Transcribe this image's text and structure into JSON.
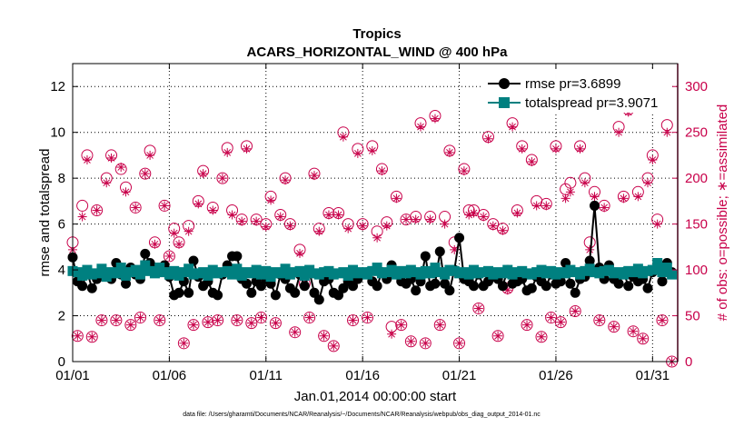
{
  "chart_data": {
    "type": "line",
    "title": "Tropics",
    "subtitle": "ACARS_HORIZONTAL_WIND @ 400 hPa",
    "xlabel": "Jan.01,2014 00:00:00 start",
    "ylabel": "rmse and totalspread",
    "ylabel_right": "# of obs: o=possible; ∗=assimilated",
    "xlim": [
      0,
      31.3
    ],
    "ylim": [
      0,
      13
    ],
    "ylim_right": [
      0,
      325
    ],
    "x_ticks": [
      0,
      5,
      10,
      15,
      20,
      25,
      30
    ],
    "x_tick_labels": [
      "01/01",
      "01/06",
      "01/11",
      "01/16",
      "01/21",
      "01/26",
      "01/31"
    ],
    "y_ticks": [
      0,
      2,
      4,
      6,
      8,
      10,
      12
    ],
    "y_tick_labels": [
      "0",
      "2",
      "4",
      "6",
      "8",
      "10",
      "12"
    ],
    "y_right_ticks": [
      0,
      50,
      100,
      150,
      200,
      250,
      300
    ],
    "y_right_tick_labels": [
      "0",
      "50",
      "100",
      "150",
      "200",
      "250",
      "300"
    ],
    "legend": [
      "rmse pr=3.6899",
      "totalspread pr=3.9071"
    ],
    "legend_position": "top-right",
    "footnote": "data file: /Users/gharamti/Documents/NCAR/Reanalysis/~/Documents/NCAR/Reanalysis/webpub/obs_diag_output_2014-01.nc",
    "x": [
      0.0,
      0.25,
      0.5,
      0.75,
      1.0,
      1.25,
      1.5,
      1.75,
      2.0,
      2.25,
      2.5,
      2.75,
      3.0,
      3.25,
      3.5,
      3.75,
      4.0,
      4.25,
      4.5,
      4.75,
      5.0,
      5.25,
      5.5,
      5.75,
      6.0,
      6.25,
      6.5,
      6.75,
      7.0,
      7.25,
      7.5,
      7.75,
      8.0,
      8.25,
      8.5,
      8.75,
      9.0,
      9.25,
      9.5,
      9.75,
      10.0,
      10.25,
      10.5,
      10.75,
      11.0,
      11.25,
      11.5,
      11.75,
      12.0,
      12.25,
      12.5,
      12.75,
      13.0,
      13.25,
      13.5,
      13.75,
      14.0,
      14.25,
      14.5,
      14.75,
      15.0,
      15.25,
      15.5,
      15.75,
      16.0,
      16.25,
      16.5,
      16.75,
      17.0,
      17.25,
      17.5,
      17.75,
      18.0,
      18.25,
      18.5,
      18.75,
      19.0,
      19.25,
      19.5,
      19.75,
      20.0,
      20.25,
      20.5,
      20.75,
      21.0,
      21.25,
      21.5,
      21.75,
      22.0,
      22.25,
      22.5,
      22.75,
      23.0,
      23.25,
      23.5,
      23.75,
      24.0,
      24.25,
      24.5,
      24.75,
      25.0,
      25.25,
      25.5,
      25.75,
      26.0,
      26.25,
      26.5,
      26.75,
      27.0,
      27.25,
      27.5,
      27.75,
      28.0,
      28.25,
      28.5,
      28.75,
      29.0,
      29.25,
      29.5,
      29.75,
      30.0,
      30.25,
      30.5,
      30.75,
      31.0
    ],
    "series": [
      {
        "name": "rmse",
        "axis": "left",
        "marker": "circle",
        "color": "#000000",
        "values": [
          4.55,
          3.5,
          3.3,
          3.9,
          3.2,
          3.6,
          4.0,
          3.7,
          3.6,
          4.3,
          3.8,
          3.4,
          4.1,
          3.8,
          3.6,
          4.7,
          4.3,
          4.0,
          3.9,
          4.2,
          3.7,
          2.9,
          3.0,
          3.5,
          3.0,
          4.4,
          3.7,
          3.3,
          3.5,
          3.0,
          2.9,
          3.8,
          4.2,
          4.6,
          4.6,
          3.6,
          3.4,
          3.0,
          3.5,
          3.3,
          3.6,
          3.4,
          2.9,
          3.8,
          3.6,
          3.2,
          3.0,
          3.8,
          3.3,
          3.9,
          3.0,
          2.7,
          3.5,
          3.6,
          3.0,
          2.9,
          3.2,
          3.5,
          3.3,
          3.6,
          3.8,
          3.9,
          3.5,
          3.3,
          3.9,
          3.6,
          4.2,
          3.8,
          3.5,
          3.4,
          3.6,
          3.1,
          3.5,
          4.6,
          3.3,
          3.4,
          4.8,
          3.4,
          3.1,
          4.0,
          5.4,
          3.6,
          3.5,
          3.3,
          3.8,
          3.3,
          3.5,
          3.7,
          3.6,
          3.3,
          4.0,
          3.4,
          3.5,
          3.6,
          3.1,
          3.2,
          3.7,
          3.5,
          3.3,
          3.8,
          3.4,
          3.5,
          4.3,
          3.4,
          3.0,
          3.6,
          3.7,
          4.4,
          6.8,
          4.1,
          3.6,
          4.2,
          3.6,
          3.4,
          3.9,
          3.3,
          3.7,
          3.5,
          3.6,
          3.2,
          3.9,
          4.1,
          3.5,
          4.3,
          3.9
        ],
        "label": "rmse pr=3.6899"
      },
      {
        "name": "totalspread",
        "axis": "left",
        "marker": "square",
        "color": "#008080",
        "values": [
          3.95,
          3.9,
          3.75,
          4.0,
          3.8,
          3.85,
          4.05,
          3.7,
          3.9,
          3.85,
          4.1,
          3.75,
          3.9,
          4.0,
          3.8,
          4.2,
          3.95,
          3.85,
          4.1,
          3.9,
          3.8,
          3.95,
          3.75,
          3.9,
          4.05,
          3.8,
          3.85,
          3.9,
          3.75,
          4.0,
          3.85,
          3.9,
          3.95,
          3.8,
          4.05,
          3.75,
          3.9,
          3.85,
          4.0,
          3.8,
          3.95,
          3.7,
          3.9,
          3.85,
          4.05,
          3.8,
          3.9,
          3.95,
          3.75,
          4.0,
          3.85,
          3.8,
          3.9,
          3.95,
          3.8,
          3.85,
          3.9,
          3.75,
          4.0,
          3.85,
          3.9,
          3.8,
          3.95,
          4.1,
          3.85,
          3.9,
          4.0,
          3.8,
          3.95,
          3.85,
          4.0,
          3.9,
          3.8,
          3.95,
          3.85,
          4.1,
          3.9,
          3.8,
          4.0,
          3.95,
          3.85,
          3.9,
          3.8,
          4.0,
          3.85,
          3.9,
          3.95,
          3.8,
          3.9,
          3.85,
          4.0,
          3.8,
          3.9,
          3.95,
          3.85,
          3.8,
          3.9,
          4.0,
          3.85,
          3.95,
          3.8,
          3.9,
          3.85,
          4.0,
          3.9,
          3.8,
          3.95,
          4.05,
          3.9,
          3.85,
          3.95,
          4.0,
          3.85,
          3.9,
          3.8,
          3.95,
          3.9,
          4.05,
          3.85,
          3.95,
          4.0,
          4.3,
          3.9,
          4.1,
          3.8
        ],
        "label": "totalspread pr=3.9071"
      },
      {
        "name": "obs possible",
        "axis": "right",
        "marker": "open-circle",
        "color": "#c8004a",
        "values": [
          130,
          28,
          170,
          225,
          27,
          165,
          45,
          200,
          225,
          45,
          210,
          190,
          40,
          168,
          48,
          205,
          230,
          130,
          45,
          170,
          115,
          145,
          130,
          20,
          148,
          40,
          175,
          208,
          43,
          168,
          45,
          200,
          233,
          165,
          45,
          155,
          235,
          42,
          155,
          48,
          150,
          180,
          42,
          160,
          200,
          150,
          32,
          122,
          85,
          48,
          205,
          145,
          28,
          162,
          17,
          162,
          250,
          150,
          45,
          232,
          150,
          48,
          235,
          142,
          210,
          152,
          38,
          180,
          40,
          155,
          22,
          158,
          260,
          20,
          158,
          268,
          40,
          158,
          230,
          130,
          20,
          210,
          165,
          165,
          58,
          160,
          245,
          150,
          28,
          145,
          80,
          260,
          165,
          235,
          40,
          220,
          175,
          27,
          172,
          48,
          235,
          43,
          188,
          195,
          55,
          235,
          200,
          130,
          185,
          45,
          170,
          283,
          38,
          256,
          180,
          275,
          33,
          185,
          25,
          200,
          225,
          155,
          45,
          258,
          0
        ],
        "label": "o=possible"
      },
      {
        "name": "obs assimilated",
        "axis": "right",
        "marker": "asterisk",
        "color": "#c8004a",
        "values": [
          122,
          28,
          158,
          220,
          27,
          165,
          45,
          195,
          222,
          45,
          212,
          185,
          40,
          168,
          48,
          205,
          225,
          128,
          45,
          170,
          115,
          140,
          128,
          20,
          142,
          40,
          172,
          205,
          43,
          165,
          45,
          200,
          228,
          160,
          45,
          153,
          232,
          42,
          153,
          48,
          147,
          176,
          42,
          158,
          198,
          148,
          32,
          118,
          85,
          48,
          203,
          142,
          28,
          160,
          17,
          160,
          245,
          145,
          45,
          227,
          148,
          48,
          230,
          135,
          208,
          148,
          30,
          178,
          40,
          155,
          22,
          155,
          256,
          20,
          155,
          265,
          40,
          150,
          228,
          122,
          20,
          208,
          160,
          162,
          58,
          158,
          243,
          148,
          28,
          143,
          78,
          256,
          162,
          232,
          40,
          218,
          170,
          27,
          170,
          48,
          232,
          43,
          178,
          185,
          55,
          232,
          195,
          122,
          180,
          45,
          168,
          280,
          38,
          250,
          178,
          272,
          33,
          180,
          25,
          195,
          220,
          150,
          45,
          250,
          0
        ],
        "label": "∗=assimilated"
      }
    ]
  }
}
